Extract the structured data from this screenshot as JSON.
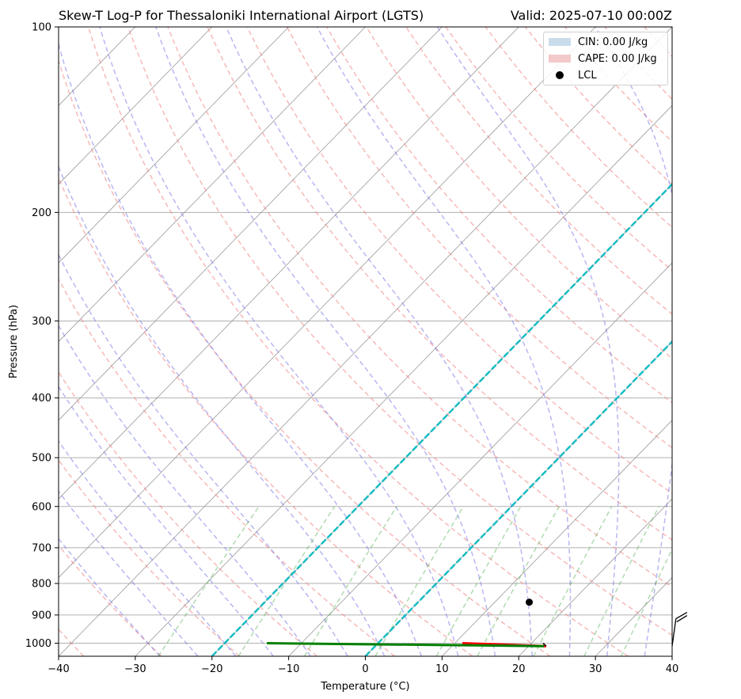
{
  "title_left": "Skew-T Log-P for Thessaloniki International Airport (LGTS)",
  "title_right": "Valid: 2025-07-10 00:00Z",
  "legend": [
    {
      "label": "CIN: 0.00 J/kg",
      "color": "#c9dcec",
      "kind": "patch"
    },
    {
      "label": "CAPE: 0.00 J/kg",
      "color": "#f3c9c9",
      "kind": "patch"
    },
    {
      "label": "LCL",
      "color": "#000000",
      "kind": "marker"
    }
  ],
  "chart_data": {
    "type": "line",
    "xlabel": "Temperature (°C)",
    "ylabel": "Pressure (hPa)",
    "xlim": [
      -40,
      40
    ],
    "ylim": [
      1050,
      100
    ],
    "y_scale": "log",
    "grid": true,
    "legend_position": "top-right",
    "x_ticks": [
      -40,
      -30,
      -20,
      -10,
      0,
      10,
      20,
      30,
      40
    ],
    "x_tick_labels": [
      "−40",
      "−30",
      "−20",
      "−10",
      "0",
      "10",
      "20",
      "30",
      "40"
    ],
    "y_ticks": [
      1000,
      900,
      800,
      700,
      600,
      500,
      400,
      300,
      200,
      100
    ],
    "y_tick_labels": [
      "1000",
      "900",
      "800",
      "700",
      "600",
      "500",
      "400",
      "300",
      "200",
      "100"
    ],
    "series": [
      {
        "kind": "temperature",
        "color": "#ff0000",
        "points": [
          {
            "p": 1011,
            "t": 22.3
          },
          {
            "p": 1000,
            "t": 11
          }
        ]
      },
      {
        "kind": "dewpoint",
        "color": "#008000",
        "points": [
          {
            "p": 1011,
            "t": 22.0
          },
          {
            "p": 1000,
            "t": -14.5
          }
        ]
      },
      {
        "kind": "parcel",
        "color": "#000000",
        "points": [
          {
            "p": 1011,
            "t": 22.3
          },
          {
            "p": 1000,
            "t": 21.5
          }
        ]
      }
    ],
    "lcl": {
      "p": 858,
      "t": 14.5
    },
    "cyan_isotherms": [
      0,
      -20
    ],
    "dry_adiabats_theta": [
      -40,
      -30,
      -20,
      -10,
      0,
      10,
      20,
      30,
      40,
      50,
      60,
      70,
      80,
      90,
      100,
      110,
      120,
      130,
      140,
      150,
      160,
      170,
      180,
      190,
      200,
      210,
      220
    ],
    "moist_adiabats_start": [
      -30,
      -25,
      -20,
      -15,
      -10,
      -5,
      0,
      5,
      10,
      15,
      20,
      25,
      30,
      35,
      40,
      45
    ],
    "mixing_ratios": [
      0.4,
      1,
      2,
      4,
      7,
      10,
      16,
      24,
      32
    ],
    "wind_barb": {
      "p": 1011,
      "direction": 30,
      "speed_kt": 10
    }
  }
}
